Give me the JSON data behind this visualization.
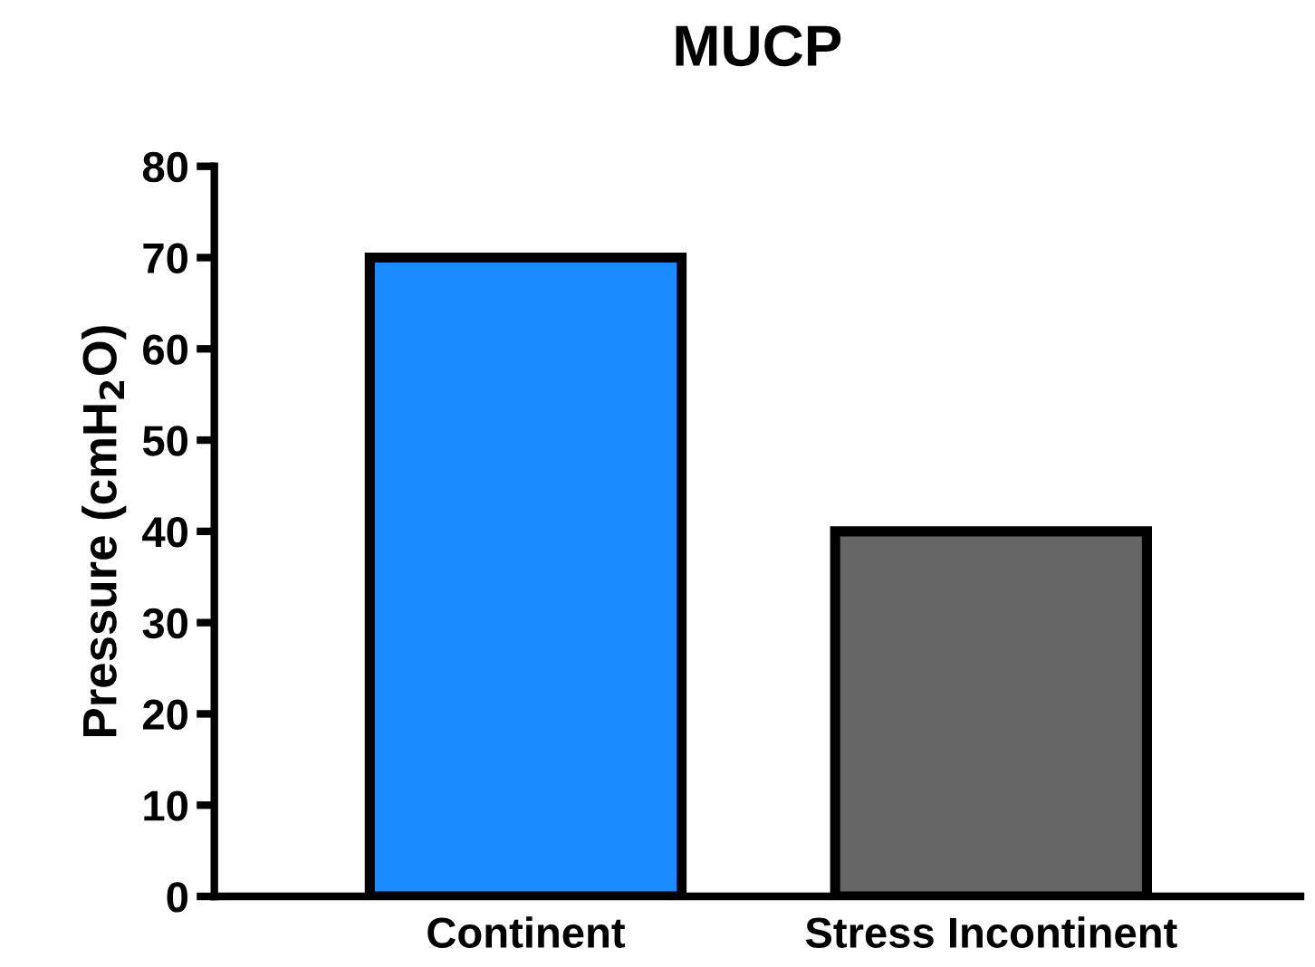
{
  "chart_data": {
    "type": "bar",
    "title": "MUCP",
    "ylabel": "Pressure (cmH$_{2}$O)",
    "categories": [
      "Continent",
      "Stress Incontinent"
    ],
    "values": [
      70,
      40
    ],
    "colors": [
      "#1a8cff",
      "#666666"
    ],
    "ylim": [
      0,
      80
    ],
    "yticks": [
      0,
      10,
      20,
      30,
      40,
      50,
      60,
      70,
      80
    ],
    "grid": false,
    "legend": false
  }
}
